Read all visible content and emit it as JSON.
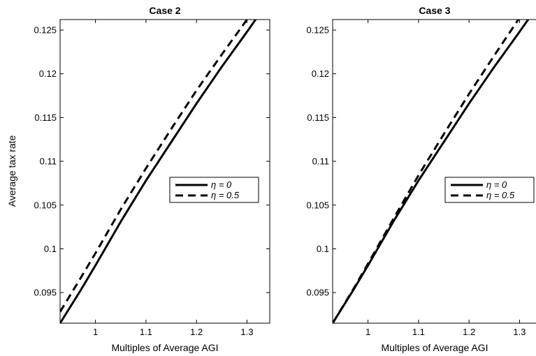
{
  "chart_data": [
    {
      "type": "line",
      "title": "Case 2",
      "xlabel": "Multiples of Average AGI",
      "ylabel": "Average tax rate",
      "xlim": [
        0.93,
        1.345
      ],
      "ylim": [
        0.0915,
        0.1262
      ],
      "xticks": [
        1,
        1.1,
        1.2,
        1.3
      ],
      "xtick_labels": [
        "1",
        "1.1",
        "1.2",
        "1.3"
      ],
      "yticks": [
        0.095,
        0.1,
        0.105,
        0.11,
        0.115,
        0.12,
        0.125
      ],
      "ytick_labels": [
        "0.095",
        "0.1",
        "0.105",
        "0.11",
        "0.115",
        "0.12",
        "0.125"
      ],
      "grid": false,
      "legend_position": "center-right",
      "series": [
        {
          "name": "η = 0",
          "style": "solid",
          "x": [
            0.93,
            0.97,
            1.0,
            1.05,
            1.1,
            1.15,
            1.2,
            1.25,
            1.3,
            1.345
          ],
          "y": [
            0.0915,
            0.0952,
            0.0981,
            0.1031,
            0.1078,
            0.1122,
            0.1166,
            0.1208,
            0.1248,
            0.1285
          ]
        },
        {
          "name": "η = 0.5",
          "style": "dashed",
          "x": [
            0.93,
            0.97,
            1.0,
            1.05,
            1.1,
            1.15,
            1.2,
            1.25,
            1.3,
            1.345
          ],
          "y": [
            0.0928,
            0.0966,
            0.0995,
            0.1045,
            0.1092,
            0.1137,
            0.1181,
            0.1222,
            0.1262,
            0.1298
          ]
        }
      ]
    },
    {
      "type": "line",
      "title": "Case 3",
      "xlabel": "Multiples of Average AGI",
      "ylabel": "",
      "xlim": [
        0.93,
        1.345
      ],
      "ylim": [
        0.0915,
        0.1262
      ],
      "xticks": [
        1,
        1.1,
        1.2,
        1.3
      ],
      "xtick_labels": [
        "1",
        "1.1",
        "1.2",
        "1.3"
      ],
      "yticks": [
        0.095,
        0.1,
        0.105,
        0.11,
        0.115,
        0.12,
        0.125
      ],
      "ytick_labels": [
        "0.095",
        "0.1",
        "0.105",
        "0.11",
        "0.115",
        "0.12",
        "0.125"
      ],
      "grid": false,
      "legend_position": "center-right",
      "series": [
        {
          "name": "η = 0",
          "style": "solid",
          "x": [
            0.93,
            0.97,
            1.0,
            1.05,
            1.1,
            1.15,
            1.2,
            1.25,
            1.3,
            1.345
          ],
          "y": [
            0.0915,
            0.0952,
            0.0981,
            0.1031,
            0.1078,
            0.1122,
            0.1166,
            0.1208,
            0.1248,
            0.1285
          ]
        },
        {
          "name": "η = 0.5",
          "style": "dashed",
          "x": [
            0.93,
            0.97,
            1.0,
            1.05,
            1.1,
            1.15,
            1.2,
            1.25,
            1.3,
            1.345
          ],
          "y": [
            0.0915,
            0.0953,
            0.0983,
            0.1034,
            0.1084,
            0.1131,
            0.1177,
            0.1221,
            0.1264,
            0.1303
          ]
        }
      ]
    }
  ]
}
